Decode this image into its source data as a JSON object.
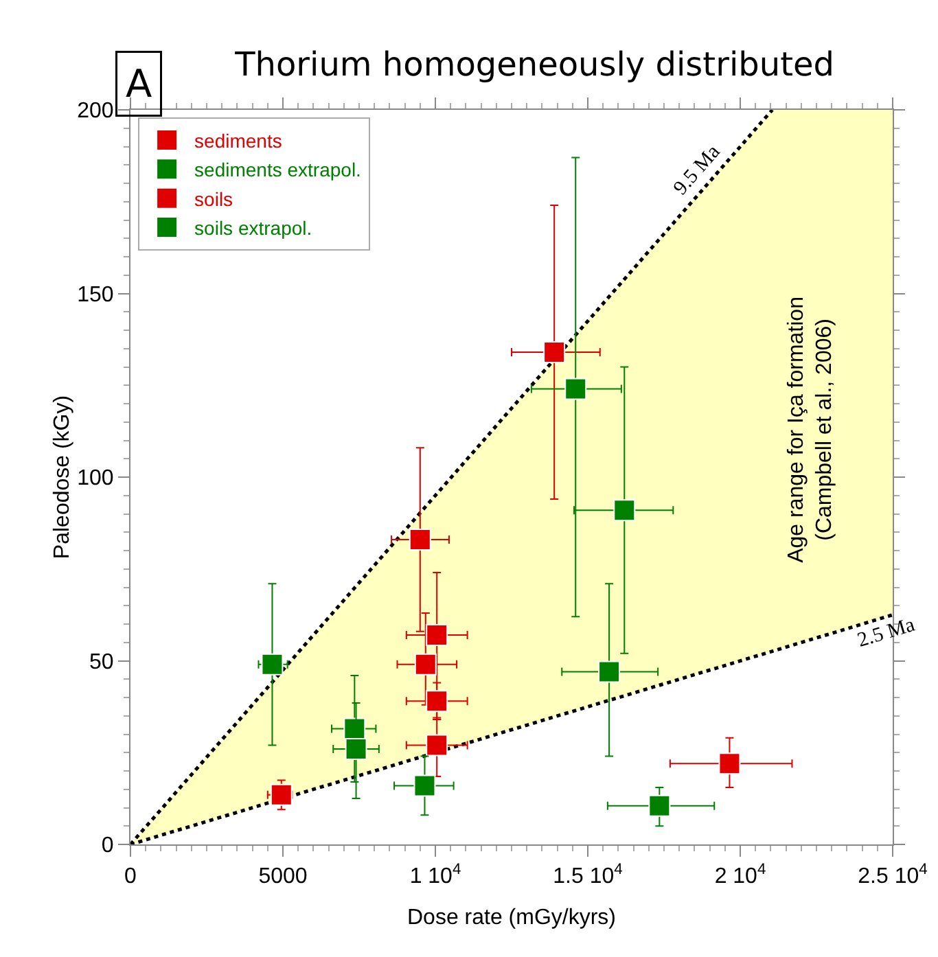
{
  "chart_data": {
    "type": "scatter",
    "title": "Thorium homogeneously distributed",
    "xlabel": "Dose rate (mGy/kyrs)",
    "ylabel": "Paleodose (kGy)",
    "annotations": [
      "A",
      "Age range for Içа formation\n(Campbell et al., 2006)"
    ],
    "xlim": [
      0,
      25000
    ],
    "ylim": [
      0,
      200
    ],
    "xticks": [
      0,
      5000,
      {
        "value": 10000,
        "label": "1 10$^{4}$"
      },
      {
        "value": 15000,
        "label": "1.5 10$^{4}$"
      },
      {
        "value": 20000,
        "label": "2 10$^{4}$"
      },
      {
        "value": 25000,
        "label": "2.5 10$^{4}$"
      }
    ],
    "yticks": [
      0,
      50,
      100,
      150,
      200
    ],
    "grid": false,
    "legend": "top left",
    "series": [
      {
        "type": "line",
        "name": "9.5 Ma",
        "color": "#000000",
        "line_style": "dotted",
        "marker": "none",
        "x": [
          0,
          21053
        ],
        "values": [
          0,
          200
        ]
      },
      {
        "type": "line",
        "name": "2.5 Ma",
        "color": "#000000",
        "line_style": "dotted",
        "marker": "none",
        "x": [
          0,
          21053,
          25000
        ],
        "values": [
          0,
          52.6,
          62.5
        ],
        "lower": [
          0,
          52.6,
          62.5
        ],
        "upper": [
          0,
          200,
          200
        ]
      },
      {
        "name": "sediments",
        "marker": "square",
        "color": "#e00000",
        "x": [
          13900,
          9500,
          10050,
          9680,
          10050
        ],
        "values": [
          134,
          83,
          57,
          49,
          39
        ],
        "errors": [
          [
            94,
            174
          ],
          [
            58,
            108
          ],
          [
            34,
            74
          ],
          [
            38,
            63
          ],
          [
            34,
            44
          ]
        ],
        "xerrors": [
          [
            12500,
            15400
          ],
          [
            8560,
            10450
          ],
          [
            9050,
            11050
          ],
          [
            8750,
            10700
          ],
          [
            9050,
            11050
          ]
        ]
      },
      {
        "name": "sediments extrapol.",
        "marker": "square",
        "color": "#008000",
        "x": [
          4650,
          7350,
          14600,
          16200,
          15700
        ],
        "values": [
          49,
          31.5,
          124,
          91,
          47
        ],
        "errors": [
          [
            27,
            71
          ],
          [
            17,
            46
          ],
          [
            62,
            187
          ],
          [
            52,
            130
          ],
          [
            24,
            71
          ]
        ],
        "xerrors": [
          [
            4200,
            5150
          ],
          [
            6600,
            8050
          ],
          [
            13150,
            16100
          ],
          [
            14550,
            17800
          ],
          [
            14150,
            17300
          ]
        ]
      },
      {
        "name": "soils",
        "marker": "square",
        "color": "#e00000",
        "x": [
          4950,
          10050,
          19650
        ],
        "values": [
          13.5,
          27,
          22
        ],
        "errors": [
          [
            9.5,
            17.5
          ],
          [
            18.5,
            34.5
          ],
          [
            15.5,
            29
          ]
        ],
        "xerrors": [
          [
            4500,
            5300
          ],
          [
            9050,
            11050
          ],
          [
            17700,
            21700
          ]
        ]
      },
      {
        "name": "soils extrapol.",
        "marker": "square",
        "color": "#008000",
        "x": [
          7400,
          9650,
          17350
        ],
        "values": [
          26,
          16,
          10.5
        ],
        "errors": [
          [
            12.5,
            38.5
          ],
          [
            8,
            24
          ],
          [
            5,
            15.5
          ]
        ],
        "xerrors": [
          [
            6650,
            8150
          ],
          [
            8650,
            10600
          ],
          [
            15650,
            19150
          ]
        ]
      }
    ]
  }
}
